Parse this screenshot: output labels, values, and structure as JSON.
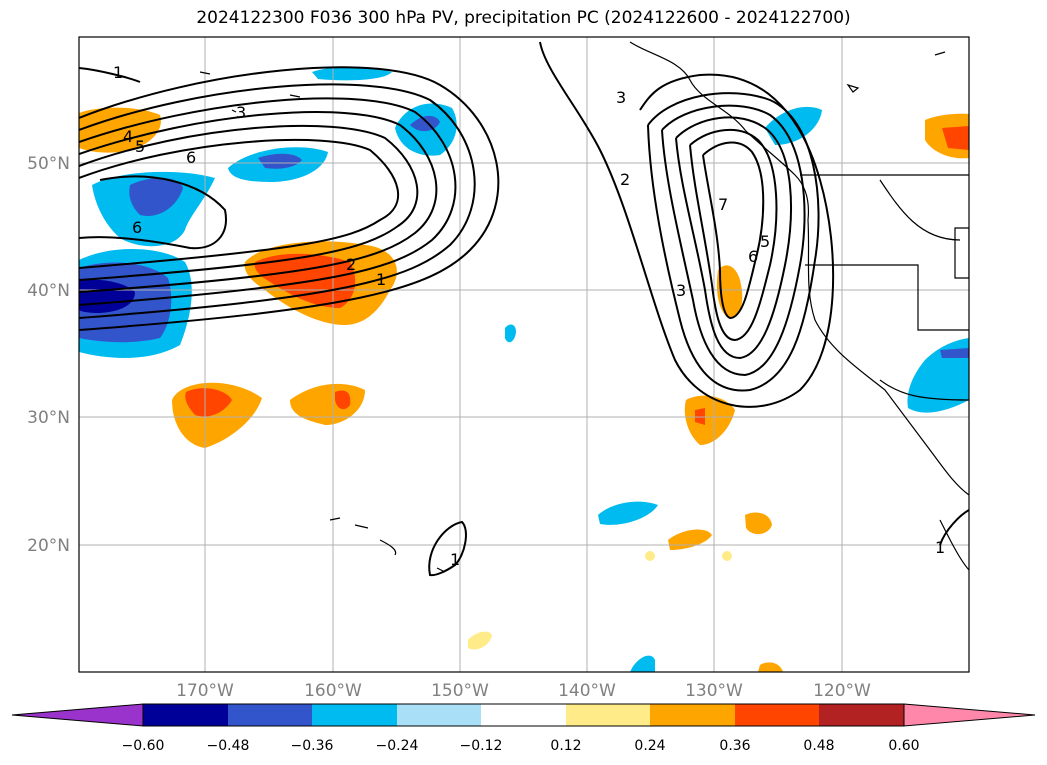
{
  "title": "2024122300 F036 300 hPa PV, precipitation PC (2024122600 - 2024122700)",
  "lat_labels": [
    "50°N",
    "40°N",
    "30°N",
    "20°N"
  ],
  "lon_labels": [
    "170°W",
    "160°W",
    "150°W",
    "140°W",
    "130°W",
    "120°W"
  ],
  "colorbar": {
    "ticks": [
      "−0.60",
      "−0.48",
      "−0.36",
      "−0.24",
      "−0.12",
      "0.12",
      "0.24",
      "0.36",
      "0.48",
      "0.60"
    ],
    "colors": [
      "#9933cc",
      "#000099",
      "#3355cc",
      "#00bbf0",
      "#aadff8",
      "#ffffff",
      "#ffeb88",
      "#ffa500",
      "#ff4500",
      "#b22222",
      "#ff88aa"
    ]
  },
  "contour_labels": [
    "1",
    "3",
    "4",
    "5",
    "6",
    "6",
    "2",
    "1",
    "3",
    "2",
    "3",
    "7",
    "6",
    "5",
    "1",
    "1"
  ]
}
